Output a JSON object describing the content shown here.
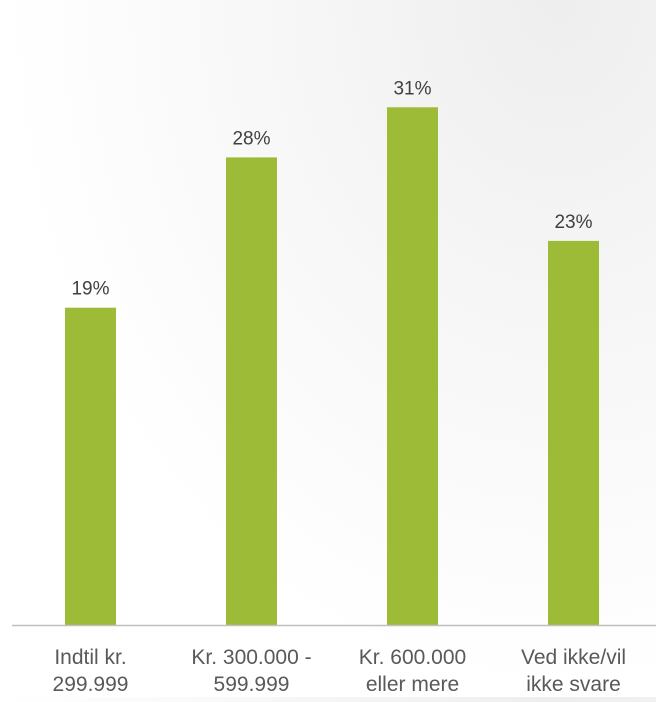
{
  "chart_data": {
    "type": "bar",
    "categories": [
      [
        "Indtil kr.",
        "299.999"
      ],
      [
        "Kr. 300.000 -",
        "599.999"
      ],
      [
        "Kr. 600.000",
        "eller mere"
      ],
      [
        "Ved ikke/vil",
        "ikke svare"
      ]
    ],
    "values": [
      19,
      28,
      31,
      23
    ],
    "value_labels": [
      "19%",
      "28%",
      "31%",
      "23%"
    ],
    "unit": "%",
    "ylim": [
      0,
      34.5
    ],
    "grid": false,
    "legend": "none",
    "colors": {
      "bar": "#9dbb37",
      "axis": "#bfbfbf",
      "label_text": "#404040",
      "tick_text": "#595959"
    }
  }
}
